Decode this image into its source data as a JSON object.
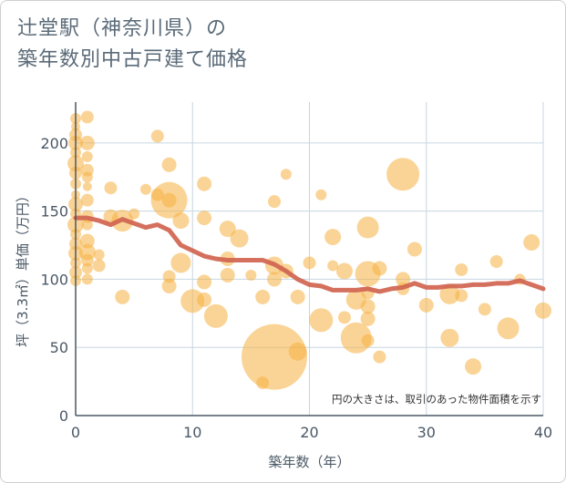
{
  "title_line1": "辻堂駅（神奈川県）の",
  "title_line2": "築年数別中古戸建て価格",
  "chart_data": {
    "type": "scatter",
    "xlabel": "築年数（年）",
    "ylabel": "坪（3.3㎡）単価（万円）",
    "xlim": [
      0,
      40
    ],
    "ylim": [
      0,
      230
    ],
    "x_ticks": [
      0,
      10,
      20,
      30,
      40
    ],
    "y_ticks": [
      0,
      50,
      100,
      150,
      200
    ],
    "note": "円の大きさは、取引のあった物件面積を示す",
    "grid": true,
    "colors": {
      "bubble": "#f5b041",
      "trend": "#d0644f",
      "grid": "#c8d6e0",
      "axis": "#4a5866"
    },
    "points": [
      {
        "x": 0,
        "y": 218,
        "s": 6
      },
      {
        "x": 0,
        "y": 212,
        "s": 5
      },
      {
        "x": 0,
        "y": 206,
        "s": 7
      },
      {
        "x": 0,
        "y": 200,
        "s": 8
      },
      {
        "x": 0,
        "y": 193,
        "s": 6
      },
      {
        "x": 0,
        "y": 185,
        "s": 9
      },
      {
        "x": 0,
        "y": 178,
        "s": 7
      },
      {
        "x": 0,
        "y": 170,
        "s": 6
      },
      {
        "x": 0,
        "y": 162,
        "s": 5
      },
      {
        "x": 0,
        "y": 155,
        "s": 8
      },
      {
        "x": 0,
        "y": 148,
        "s": 6
      },
      {
        "x": 0,
        "y": 140,
        "s": 9
      },
      {
        "x": 0,
        "y": 133,
        "s": 6
      },
      {
        "x": 0,
        "y": 126,
        "s": 7
      },
      {
        "x": 0,
        "y": 119,
        "s": 8
      },
      {
        "x": 0,
        "y": 112,
        "s": 6
      },
      {
        "x": 0,
        "y": 105,
        "s": 7
      },
      {
        "x": 0,
        "y": 99,
        "s": 6
      },
      {
        "x": 1,
        "y": 219,
        "s": 7
      },
      {
        "x": 1,
        "y": 200,
        "s": 8
      },
      {
        "x": 1,
        "y": 190,
        "s": 6
      },
      {
        "x": 1,
        "y": 180,
        "s": 7
      },
      {
        "x": 1,
        "y": 175,
        "s": 6
      },
      {
        "x": 1,
        "y": 168,
        "s": 5
      },
      {
        "x": 1,
        "y": 158,
        "s": 7
      },
      {
        "x": 1,
        "y": 146,
        "s": 7
      },
      {
        "x": 1,
        "y": 140,
        "s": 6
      },
      {
        "x": 1,
        "y": 128,
        "s": 8
      },
      {
        "x": 1,
        "y": 120,
        "s": 9
      },
      {
        "x": 1,
        "y": 114,
        "s": 7
      },
      {
        "x": 1,
        "y": 108,
        "s": 6
      },
      {
        "x": 1,
        "y": 100,
        "s": 6
      },
      {
        "x": 2,
        "y": 118,
        "s": 6
      },
      {
        "x": 2,
        "y": 110,
        "s": 7
      },
      {
        "x": 3,
        "y": 167,
        "s": 7
      },
      {
        "x": 3,
        "y": 146,
        "s": 8
      },
      {
        "x": 4,
        "y": 143,
        "s": 12
      },
      {
        "x": 4,
        "y": 87,
        "s": 8
      },
      {
        "x": 5,
        "y": 148,
        "s": 6
      },
      {
        "x": 6,
        "y": 166,
        "s": 6
      },
      {
        "x": 7,
        "y": 205,
        "s": 7
      },
      {
        "x": 7,
        "y": 162,
        "s": 7
      },
      {
        "x": 8,
        "y": 184,
        "s": 8
      },
      {
        "x": 8,
        "y": 158,
        "s": 20
      },
      {
        "x": 8,
        "y": 158,
        "s": 8
      },
      {
        "x": 8,
        "y": 102,
        "s": 7
      },
      {
        "x": 8,
        "y": 95,
        "s": 8
      },
      {
        "x": 9,
        "y": 143,
        "s": 9
      },
      {
        "x": 9,
        "y": 112,
        "s": 11
      },
      {
        "x": 10,
        "y": 84,
        "s": 13
      },
      {
        "x": 11,
        "y": 170,
        "s": 8
      },
      {
        "x": 11,
        "y": 145,
        "s": 8
      },
      {
        "x": 11,
        "y": 98,
        "s": 8
      },
      {
        "x": 11,
        "y": 85,
        "s": 8
      },
      {
        "x": 12,
        "y": 73,
        "s": 13
      },
      {
        "x": 13,
        "y": 137,
        "s": 9
      },
      {
        "x": 13,
        "y": 115,
        "s": 8
      },
      {
        "x": 13,
        "y": 103,
        "s": 8
      },
      {
        "x": 14,
        "y": 130,
        "s": 10
      },
      {
        "x": 15,
        "y": 103,
        "s": 6
      },
      {
        "x": 16,
        "y": 87,
        "s": 8
      },
      {
        "x": 16,
        "y": 24,
        "s": 7
      },
      {
        "x": 17,
        "y": 157,
        "s": 7
      },
      {
        "x": 17,
        "y": 110,
        "s": 10
      },
      {
        "x": 17,
        "y": 100,
        "s": 8
      },
      {
        "x": 17,
        "y": 43,
        "s": 36
      },
      {
        "x": 18,
        "y": 177,
        "s": 6
      },
      {
        "x": 18,
        "y": 106,
        "s": 8
      },
      {
        "x": 19,
        "y": 87,
        "s": 8
      },
      {
        "x": 19,
        "y": 47,
        "s": 10
      },
      {
        "x": 20,
        "y": 112,
        "s": 7
      },
      {
        "x": 21,
        "y": 162,
        "s": 6
      },
      {
        "x": 21,
        "y": 70,
        "s": 13
      },
      {
        "x": 22,
        "y": 131,
        "s": 9
      },
      {
        "x": 22,
        "y": 110,
        "s": 6
      },
      {
        "x": 23,
        "y": 106,
        "s": 9
      },
      {
        "x": 23,
        "y": 72,
        "s": 7
      },
      {
        "x": 24,
        "y": 85,
        "s": 11
      },
      {
        "x": 24,
        "y": 57,
        "s": 17
      },
      {
        "x": 25,
        "y": 138,
        "s": 12
      },
      {
        "x": 25,
        "y": 104,
        "s": 14
      },
      {
        "x": 25,
        "y": 90,
        "s": 7
      },
      {
        "x": 25,
        "y": 80,
        "s": 8
      },
      {
        "x": 25,
        "y": 71,
        "s": 8
      },
      {
        "x": 25,
        "y": 55,
        "s": 7
      },
      {
        "x": 26,
        "y": 108,
        "s": 8
      },
      {
        "x": 26,
        "y": 43,
        "s": 7
      },
      {
        "x": 28,
        "y": 177,
        "s": 18
      },
      {
        "x": 28,
        "y": 100,
        "s": 8
      },
      {
        "x": 28,
        "y": 93,
        "s": 7
      },
      {
        "x": 29,
        "y": 122,
        "s": 8
      },
      {
        "x": 30,
        "y": 81,
        "s": 8
      },
      {
        "x": 32,
        "y": 89,
        "s": 11
      },
      {
        "x": 32,
        "y": 57,
        "s": 10
      },
      {
        "x": 33,
        "y": 107,
        "s": 7
      },
      {
        "x": 33,
        "y": 88,
        "s": 7
      },
      {
        "x": 34,
        "y": 36,
        "s": 9
      },
      {
        "x": 35,
        "y": 78,
        "s": 7
      },
      {
        "x": 36,
        "y": 113,
        "s": 7
      },
      {
        "x": 37,
        "y": 64,
        "s": 12
      },
      {
        "x": 38,
        "y": 100,
        "s": 6
      },
      {
        "x": 39,
        "y": 127,
        "s": 9
      },
      {
        "x": 40,
        "y": 77,
        "s": 9
      }
    ],
    "trend": {
      "x": [
        0,
        1,
        2,
        3,
        4,
        5,
        6,
        7,
        8,
        9,
        10,
        11,
        12,
        13,
        14,
        15,
        16,
        17,
        18,
        19,
        20,
        21,
        22,
        23,
        24,
        25,
        26,
        27,
        28,
        29,
        30,
        31,
        32,
        33,
        34,
        35,
        36,
        37,
        38,
        39,
        40
      ],
      "y": [
        145,
        145,
        143,
        140,
        144,
        141,
        138,
        140,
        136,
        125,
        121,
        117,
        115,
        114,
        114,
        114,
        114,
        111,
        106,
        100,
        96,
        95,
        92,
        92,
        92,
        93,
        91,
        93,
        94,
        97,
        94,
        94,
        95,
        95,
        96,
        96,
        97,
        97,
        99,
        96,
        93
      ]
    }
  }
}
